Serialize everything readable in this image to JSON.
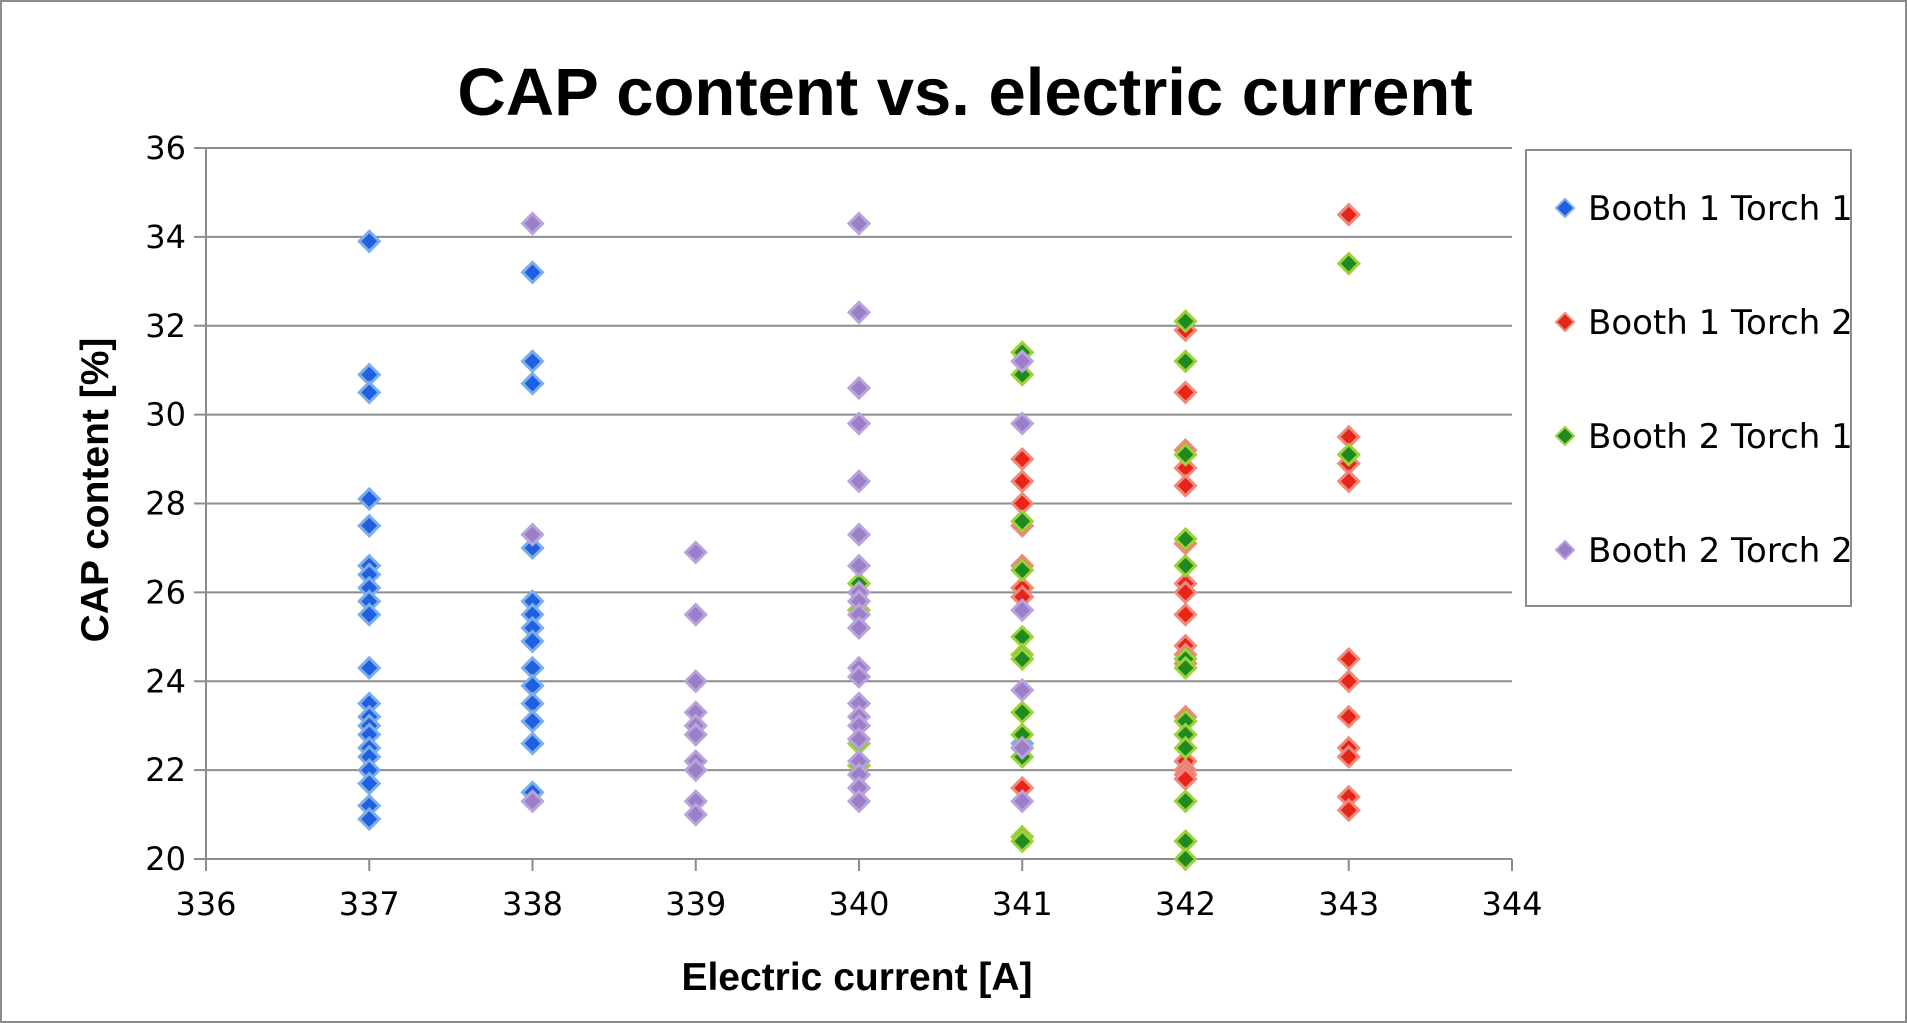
{
  "chart_data": {
    "type": "scatter",
    "title": "CAP content vs. electric current",
    "xlabel": "Electric current [A]",
    "ylabel": "CAP content [%]",
    "xlim": [
      336,
      344
    ],
    "ylim": [
      20,
      36
    ],
    "xticks": [
      336,
      337,
      338,
      339,
      340,
      341,
      342,
      343,
      344
    ],
    "yticks": [
      20,
      22,
      24,
      26,
      28,
      30,
      32,
      34,
      36
    ],
    "grid": "horizontal",
    "legend_position": "right",
    "series": [
      {
        "name": "Booth 1 Torch 1",
        "color": "#1f5fe0",
        "edge": "#7aaeea",
        "points": [
          [
            337,
            33.9
          ],
          [
            337,
            30.9
          ],
          [
            337,
            30.5
          ],
          [
            337,
            28.1
          ],
          [
            337,
            27.5
          ],
          [
            337,
            26.6
          ],
          [
            337,
            26.4
          ],
          [
            337,
            26.1
          ],
          [
            337,
            25.8
          ],
          [
            337,
            25.5
          ],
          [
            337,
            24.3
          ],
          [
            337,
            23.5
          ],
          [
            337,
            23.2
          ],
          [
            337,
            23.0
          ],
          [
            337,
            22.8
          ],
          [
            337,
            22.5
          ],
          [
            337,
            22.3
          ],
          [
            337,
            22.0
          ],
          [
            337,
            21.7
          ],
          [
            337,
            21.2
          ],
          [
            337,
            20.9
          ],
          [
            338,
            33.2
          ],
          [
            338,
            31.2
          ],
          [
            338,
            30.7
          ],
          [
            338,
            27.0
          ],
          [
            338,
            25.8
          ],
          [
            338,
            25.5
          ],
          [
            338,
            25.2
          ],
          [
            338,
            24.9
          ],
          [
            338,
            24.3
          ],
          [
            338,
            23.9
          ],
          [
            338,
            23.5
          ],
          [
            338,
            23.1
          ],
          [
            338,
            22.6
          ],
          [
            338,
            21.5
          ],
          [
            341,
            22.6
          ]
        ]
      },
      {
        "name": "Booth 1 Torch 2",
        "color": "#e8241a",
        "edge": "#f08a7a",
        "points": [
          [
            341,
            29.0
          ],
          [
            341,
            28.5
          ],
          [
            341,
            28.0
          ],
          [
            341,
            27.5
          ],
          [
            341,
            26.6
          ],
          [
            341,
            26.1
          ],
          [
            341,
            25.9
          ],
          [
            341,
            21.6
          ],
          [
            342,
            31.9
          ],
          [
            342,
            30.5
          ],
          [
            342,
            29.2
          ],
          [
            342,
            28.8
          ],
          [
            342,
            28.4
          ],
          [
            342,
            27.1
          ],
          [
            342,
            26.2
          ],
          [
            342,
            26.0
          ],
          [
            342,
            25.5
          ],
          [
            342,
            24.8
          ],
          [
            342,
            24.6
          ],
          [
            342,
            24.4
          ],
          [
            342,
            23.2
          ],
          [
            342,
            22.2
          ],
          [
            342,
            22.0
          ],
          [
            342,
            21.9
          ],
          [
            342,
            21.8
          ],
          [
            343,
            34.5
          ],
          [
            343,
            29.5
          ],
          [
            343,
            28.9
          ],
          [
            343,
            28.5
          ],
          [
            343,
            24.5
          ],
          [
            343,
            24.0
          ],
          [
            343,
            23.2
          ],
          [
            343,
            22.5
          ],
          [
            343,
            22.3
          ],
          [
            343,
            21.4
          ],
          [
            343,
            21.1
          ]
        ]
      },
      {
        "name": "Booth 2 Torch 1",
        "color": "#1f8a1f",
        "edge": "#9ed13a",
        "points": [
          [
            340,
            26.2
          ],
          [
            340,
            25.6
          ],
          [
            340,
            22.6
          ],
          [
            340,
            22.1
          ],
          [
            341,
            31.4
          ],
          [
            341,
            30.9
          ],
          [
            341,
            27.6
          ],
          [
            341,
            26.5
          ],
          [
            341,
            25.0
          ],
          [
            341,
            24.6
          ],
          [
            341,
            24.5
          ],
          [
            341,
            23.3
          ],
          [
            341,
            22.8
          ],
          [
            341,
            22.5
          ],
          [
            341,
            22.3
          ],
          [
            341,
            20.5
          ],
          [
            341,
            20.4
          ],
          [
            342,
            32.1
          ],
          [
            342,
            31.2
          ],
          [
            342,
            29.1
          ],
          [
            342,
            27.2
          ],
          [
            342,
            26.6
          ],
          [
            342,
            24.5
          ],
          [
            342,
            24.3
          ],
          [
            342,
            23.1
          ],
          [
            342,
            22.8
          ],
          [
            342,
            22.5
          ],
          [
            342,
            21.3
          ],
          [
            342,
            20.4
          ],
          [
            342,
            20.0
          ],
          [
            343,
            33.4
          ],
          [
            343,
            29.1
          ]
        ]
      },
      {
        "name": "Booth 2 Torch 2",
        "color": "#9b7ec8",
        "edge": "#b9a3da",
        "points": [
          [
            338,
            34.3
          ],
          [
            338,
            27.3
          ],
          [
            338,
            21.3
          ],
          [
            339,
            26.9
          ],
          [
            339,
            25.5
          ],
          [
            339,
            24.0
          ],
          [
            339,
            23.3
          ],
          [
            339,
            23.0
          ],
          [
            339,
            22.8
          ],
          [
            339,
            22.2
          ],
          [
            339,
            22.0
          ],
          [
            339,
            21.3
          ],
          [
            339,
            21.0
          ],
          [
            340,
            34.3
          ],
          [
            340,
            32.3
          ],
          [
            340,
            30.6
          ],
          [
            340,
            29.8
          ],
          [
            340,
            28.5
          ],
          [
            340,
            27.3
          ],
          [
            340,
            26.6
          ],
          [
            340,
            26.0
          ],
          [
            340,
            25.8
          ],
          [
            340,
            25.5
          ],
          [
            340,
            25.2
          ],
          [
            340,
            24.3
          ],
          [
            340,
            24.1
          ],
          [
            340,
            23.5
          ],
          [
            340,
            23.2
          ],
          [
            340,
            23.0
          ],
          [
            340,
            22.7
          ],
          [
            340,
            22.2
          ],
          [
            340,
            21.9
          ],
          [
            340,
            21.6
          ],
          [
            340,
            21.3
          ],
          [
            341,
            31.2
          ],
          [
            341,
            29.8
          ],
          [
            341,
            25.6
          ],
          [
            341,
            23.8
          ],
          [
            341,
            22.5
          ],
          [
            341,
            21.3
          ]
        ]
      }
    ]
  }
}
